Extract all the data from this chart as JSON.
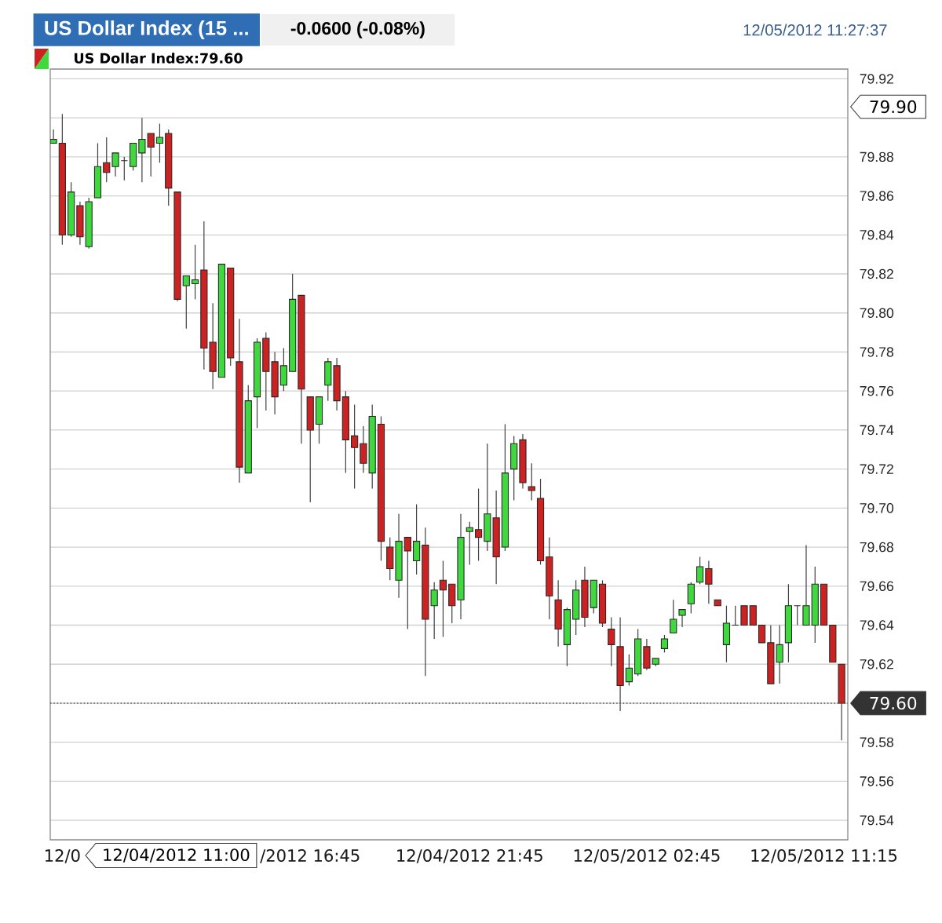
{
  "chart_data": {
    "type": "candlestick",
    "title": "US Dollar Index (15 ...",
    "subtitle": "-0.0600 (-0.08%)",
    "categories": [
      null,
      "12/0",
      null,
      null,
      null,
      null,
      null,
      null,
      null,
      null,
      null,
      null,
      null,
      null,
      null,
      null,
      null,
      null,
      null,
      null,
      null,
      null,
      null,
      null,
      null,
      null,
      null,
      null,
      null,
      "/2012 16:45",
      null,
      null,
      null,
      null,
      null,
      null,
      null,
      null,
      null,
      null,
      null,
      null,
      null,
      null,
      null,
      null,
      null,
      "12/04/2012 21:45",
      null,
      null,
      null,
      null,
      null,
      null,
      null,
      null,
      null,
      null,
      null,
      null,
      null,
      null,
      null,
      null,
      null,
      null,
      null,
      "12/05/2012 02:45",
      null,
      null,
      null,
      null,
      null,
      null,
      null,
      null,
      null,
      null,
      null,
      null,
      null,
      null,
      null,
      null,
      null,
      null,
      null,
      "12/05/2012 11:15",
      null,
      null
    ],
    "series": [
      {
        "name": "US Dollar Index:79.60",
        "colors": [
          "#3fd93f",
          "#cc2222",
          "#3fd93f",
          "#cc2222",
          "#3fd93f",
          "#3fd93f",
          "#cc2222",
          "#3fd93f",
          "#262626",
          "#3fd93f",
          "#3fd93f",
          "#cc2222",
          "#3fd93f",
          "#cc2222",
          "#cc2222",
          "#3fd93f",
          "#3fd93f",
          "#cc2222",
          "#cc2222",
          "#3fd93f",
          "#cc2222",
          "#cc2222",
          "#3fd93f",
          "#3fd93f",
          "#cc2222",
          "#cc2222",
          "#3fd93f",
          "#3fd93f",
          "#cc2222",
          "#cc2222",
          "#3fd93f",
          "#3fd93f",
          "#cc2222",
          "#cc2222",
          "#cc2222",
          "#cc2222",
          "#3fd93f",
          "#cc2222",
          "#cc2222",
          "#3fd93f",
          "#cc2222",
          "#3fd93f",
          "#cc2222",
          "#3fd93f",
          "#cc2222",
          "#cc2222",
          "#3fd93f",
          "#3fd93f",
          "#cc2222",
          "#3fd93f",
          "#cc2222",
          "#3fd93f",
          "#3fd93f",
          "#cc2222",
          "#cc2222",
          "#cc2222",
          "#cc2222",
          "#cc2222",
          "#3fd93f",
          "#3fd93f",
          "#cc2222",
          "#3fd93f",
          "#cc2222",
          "#cc2222",
          "#cc2222",
          "#3fd93f",
          "#3fd93f",
          "#cc2222",
          "#3fd93f",
          "#3fd93f",
          "#3fd93f",
          "#3fd93f",
          "#3fd93f",
          "#3fd93f",
          "#cc2222",
          "#cc2222",
          "#3fd93f",
          "#262626",
          "#cc2222",
          "#cc2222",
          "#cc2222",
          "#cc2222",
          "#3fd93f",
          "#3fd93f",
          "#262626",
          "#3fd93f",
          "#3fd93f",
          "#cc2222",
          "#cc2222",
          "#cc2222"
        ],
        "ohlc": [
          [
            79.887,
            79.894,
            79.887,
            79.889
          ],
          [
            79.887,
            79.902,
            79.835,
            79.84
          ],
          [
            79.84,
            79.867,
            79.839,
            79.862
          ],
          [
            79.855,
            79.857,
            79.835,
            79.839
          ],
          [
            79.834,
            79.859,
            79.833,
            79.857
          ],
          [
            79.859,
            79.887,
            79.859,
            79.875
          ],
          [
            79.877,
            79.89,
            79.867,
            79.872
          ],
          [
            79.875,
            79.882,
            79.87,
            79.882
          ],
          [
            79.878,
            79.88,
            79.868,
            79.878
          ],
          [
            79.875,
            79.887,
            79.873,
            79.887
          ],
          [
            79.882,
            79.9,
            79.867,
            79.889
          ],
          [
            79.892,
            79.892,
            79.87,
            79.885
          ],
          [
            79.887,
            79.897,
            79.877,
            79.89
          ],
          [
            79.892,
            79.894,
            79.855,
            79.864
          ],
          [
            79.862,
            79.862,
            79.806,
            79.807
          ],
          [
            79.814,
            79.819,
            79.792,
            79.819
          ],
          [
            79.815,
            79.835,
            79.807,
            79.817
          ],
          [
            79.822,
            79.847,
            79.771,
            79.782
          ],
          [
            79.785,
            79.805,
            79.761,
            79.77
          ],
          [
            79.767,
            79.825,
            79.767,
            79.825
          ],
          [
            79.823,
            79.823,
            79.773,
            79.777
          ],
          [
            79.775,
            79.797,
            79.713,
            79.721
          ],
          [
            79.718,
            79.763,
            79.718,
            79.755
          ],
          [
            79.757,
            79.787,
            79.741,
            79.785
          ],
          [
            79.787,
            79.79,
            79.75,
            79.77
          ],
          [
            79.775,
            79.78,
            79.748,
            79.757
          ],
          [
            79.763,
            79.782,
            79.76,
            79.773
          ],
          [
            79.77,
            79.82,
            79.77,
            79.807
          ],
          [
            79.809,
            79.809,
            79.733,
            79.761
          ],
          [
            79.757,
            79.757,
            79.703,
            79.74
          ],
          [
            79.743,
            79.757,
            79.733,
            79.757
          ],
          [
            79.763,
            79.777,
            79.755,
            79.775
          ],
          [
            79.773,
            79.777,
            79.75,
            79.755
          ],
          [
            79.757,
            79.76,
            79.718,
            79.735
          ],
          [
            79.737,
            79.753,
            79.71,
            79.731
          ],
          [
            79.733,
            79.742,
            79.718,
            79.723
          ],
          [
            79.718,
            79.753,
            79.71,
            79.747
          ],
          [
            79.743,
            79.747,
            79.673,
            79.683
          ],
          [
            79.68,
            79.685,
            79.663,
            79.669
          ],
          [
            79.663,
            79.697,
            79.654,
            79.683
          ],
          [
            79.685,
            79.685,
            79.638,
            79.678
          ],
          [
            79.673,
            79.702,
            79.666,
            79.683
          ],
          [
            79.681,
            79.69,
            79.614,
            79.643
          ],
          [
            79.65,
            79.662,
            79.633,
            79.658
          ],
          [
            79.663,
            79.673,
            79.634,
            79.658
          ],
          [
            79.661,
            79.661,
            79.641,
            79.65
          ],
          [
            79.653,
            79.697,
            79.643,
            79.685
          ],
          [
            79.688,
            79.693,
            79.671,
            79.69
          ],
          [
            79.689,
            79.71,
            79.673,
            79.685
          ],
          [
            79.683,
            79.733,
            79.678,
            79.697
          ],
          [
            79.695,
            79.709,
            79.661,
            79.675
          ],
          [
            79.68,
            79.743,
            79.678,
            79.718
          ],
          [
            79.72,
            79.737,
            79.704,
            79.733
          ],
          [
            79.735,
            79.738,
            79.71,
            79.713
          ],
          [
            79.711,
            79.723,
            79.704,
            79.709
          ],
          [
            79.705,
            79.715,
            79.671,
            79.673
          ],
          [
            79.675,
            79.685,
            79.643,
            79.655
          ],
          [
            79.653,
            79.663,
            79.629,
            79.638
          ],
          [
            79.63,
            79.649,
            79.619,
            79.648
          ],
          [
            79.643,
            79.663,
            79.635,
            79.658
          ],
          [
            79.663,
            79.67,
            79.639,
            79.644
          ],
          [
            79.649,
            79.663,
            79.646,
            79.663
          ],
          [
            79.661,
            79.663,
            79.639,
            79.641
          ],
          [
            79.638,
            79.644,
            79.619,
            79.63
          ],
          [
            79.629,
            79.644,
            79.596,
            79.609
          ],
          [
            79.611,
            79.625,
            79.609,
            79.618
          ],
          [
            79.615,
            79.638,
            79.614,
            79.633
          ],
          [
            79.629,
            79.633,
            79.617,
            79.618
          ],
          [
            79.62,
            79.623,
            79.619,
            79.623
          ],
          [
            79.628,
            79.635,
            79.626,
            79.633
          ],
          [
            79.636,
            79.653,
            79.636,
            79.643
          ],
          [
            79.645,
            79.648,
            79.639,
            79.648
          ],
          [
            79.651,
            79.662,
            79.646,
            79.661
          ],
          [
            79.662,
            79.675,
            79.661,
            79.67
          ],
          [
            79.669,
            79.673,
            79.651,
            79.661
          ],
          [
            79.653,
            79.653,
            79.65,
            79.65
          ],
          [
            79.63,
            79.65,
            79.621,
            79.641
          ],
          [
            79.64,
            79.65,
            79.64,
            79.64
          ],
          [
            79.65,
            79.65,
            79.64,
            79.64
          ],
          [
            79.65,
            79.65,
            79.64,
            79.64
          ],
          [
            79.64,
            79.64,
            79.631,
            79.631
          ],
          [
            79.631,
            79.64,
            79.61,
            79.61
          ],
          [
            79.621,
            79.64,
            79.61,
            79.63
          ],
          [
            79.631,
            79.661,
            79.621,
            79.65
          ],
          [
            79.65,
            79.65,
            79.64,
            79.65
          ],
          [
            79.64,
            79.681,
            79.64,
            79.65
          ],
          [
            79.64,
            79.67,
            79.631,
            79.661
          ],
          [
            79.661,
            79.661,
            79.64,
            79.64
          ],
          [
            79.64,
            79.64,
            79.621,
            79.621
          ],
          [
            79.62,
            79.62,
            79.581,
            79.6
          ]
        ]
      }
    ],
    "ylim": [
      79.53,
      79.925
    ],
    "yticks": [
      79.54,
      79.56,
      79.58,
      {
        "value": 79.6,
        "label": null
      },
      79.62,
      79.64,
      79.66,
      79.68,
      {
        "value": 79.7,
        "label": "79.70"
      },
      79.72,
      79.74,
      79.76,
      79.78,
      {
        "value": 79.8,
        "label": "79.80"
      },
      79.82,
      79.84,
      79.86,
      79.88,
      {
        "value": 79.9,
        "label": null
      },
      79.92
    ],
    "grid": "y",
    "legend": "top left",
    "ref_lines": [
      {
        "axis": "y",
        "value": 79.6,
        "label": "79.60",
        "line_style": "dotted",
        "color": "#555555"
      }
    ],
    "annotations": [
      "12/05/2012 11:27:37",
      "12/04/2012 11:00",
      "79.90"
    ]
  }
}
